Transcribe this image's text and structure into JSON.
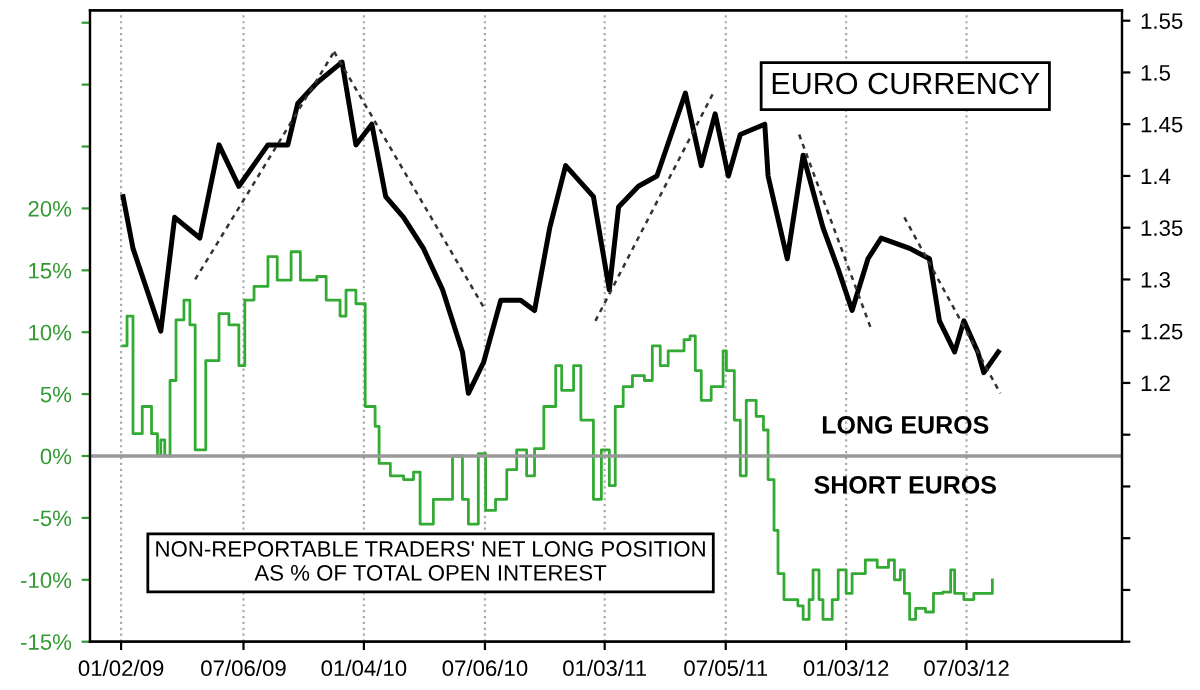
{
  "chart_data": {
    "type": "line",
    "annotations": [
      "EURO CURRENCY",
      "LONG EUROS",
      "SHORT EUROS",
      "NON-REPORTABLE TRADERS' NET LONG POSITION\nAS % OF TOTAL OPEN INTEREST"
    ],
    "series": [
      {
        "type": "step",
        "color": "#33aa33",
        "x": [
          "2009-01-05",
          "2009-01-11",
          "2009-01-20",
          "2009-02-03",
          "2009-02-17",
          "2009-02-26",
          "2009-03-03",
          "2009-03-09",
          "2009-03-17",
          "2009-03-26",
          "2009-04-07",
          "2009-04-16",
          "2009-04-24",
          "2009-05-10",
          "2009-05-30",
          "2009-06-14",
          "2009-06-29",
          "2009-07-08",
          "2009-07-22",
          "2009-08-12",
          "2009-08-26",
          "2009-09-16",
          "2009-09-30",
          "2009-10-25",
          "2009-11-08",
          "2009-11-29",
          "2009-12-08",
          "2009-12-23",
          "2010-01-06",
          "2010-01-21",
          "2010-01-27",
          "2010-02-13",
          "2010-03-05",
          "2010-03-20",
          "2010-03-30",
          "2010-04-19",
          "2010-05-18",
          "2010-06-02",
          "2010-06-11",
          "2010-06-26",
          "2010-07-07",
          "2010-07-22",
          "2010-08-08",
          "2010-08-23",
          "2010-09-07",
          "2010-09-19",
          "2010-10-03",
          "2010-10-21",
          "2010-10-30",
          "2010-11-17",
          "2010-11-28",
          "2010-12-17",
          "2010-12-29",
          "2011-01-10",
          "2011-01-19",
          "2011-01-31",
          "2011-02-14",
          "2011-03-04",
          "2011-03-16",
          "2011-03-28",
          "2011-04-09",
          "2011-05-03",
          "2011-05-12",
          "2011-05-20",
          "2011-05-29",
          "2011-06-13",
          "2011-07-01",
          "2011-07-06",
          "2011-07-18",
          "2011-07-27",
          "2011-08-05",
          "2011-08-20",
          "2011-08-31",
          "2011-09-07",
          "2011-09-16",
          "2011-09-22",
          "2011-10-01",
          "2011-10-22",
          "2011-10-30",
          "2011-11-08",
          "2011-11-14",
          "2011-11-23",
          "2011-11-29",
          "2011-12-13",
          "2011-12-22",
          "2012-01-03",
          "2012-01-12",
          "2012-02-01",
          "2012-02-19",
          "2012-03-07",
          "2012-03-16",
          "2012-03-25",
          "2012-03-31",
          "2012-04-08",
          "2012-04-17",
          "2012-05-02",
          "2012-05-14",
          "2012-05-28",
          "2012-06-09",
          "2012-06-15",
          "2012-06-29",
          "2012-07-14",
          "2012-08-03",
          "2012-08-11"
        ],
        "values": [
          8.9,
          11.3,
          1.8,
          4.0,
          1.8,
          0,
          1.3,
          0,
          6.1,
          11.0,
          12.6,
          10.6,
          0.5,
          7.7,
          11.5,
          10.6,
          7.3,
          12.6,
          13.7,
          16.1,
          14.2,
          16.5,
          14.2,
          14.5,
          12.6,
          11.3,
          13.4,
          12.3,
          4.0,
          2.4,
          -0.6,
          -1.6,
          -1.9,
          -1.3,
          -5.5,
          -3.5,
          0,
          -3.5,
          -5.5,
          0.2,
          -4.4,
          -3.5,
          -1.1,
          0.5,
          -1.6,
          0.6,
          4.0,
          7.3,
          5.3,
          7.3,
          2.9,
          -3.5,
          0.5,
          -2.4,
          4.0,
          5.6,
          6.5,
          6.1,
          8.9,
          7.3,
          8.5,
          9.4,
          9.7,
          6.9,
          4.5,
          5.6,
          8.5,
          6.9,
          2.9,
          -1.6,
          4.5,
          3.2,
          2.1,
          -1.9,
          -6.0,
          -9.5,
          -11.6,
          -12.1,
          -13.2,
          -11.6,
          -9.2,
          -11.6,
          -13.2,
          -11.6,
          -9.2,
          -11.1,
          -9.5,
          -8.4,
          -9.0,
          -8.4,
          -10.0,
          -9.2,
          -11.1,
          -13.2,
          -12.3,
          -12.6,
          -11.1,
          -11.0,
          -9.2,
          -11.1,
          -11.6,
          -11.1,
          -11.1,
          -10.0
        ]
      },
      {
        "axis": "y2",
        "color": "#000000",
        "x": [
          "2009-01-05",
          "2009-01-20",
          "2009-02-10",
          "2009-03-03",
          "2009-03-24",
          "2009-05-01",
          "2009-05-30",
          "2009-06-29",
          "2009-08-12",
          "2009-09-11",
          "2009-09-26",
          "2009-10-25",
          "2009-12-02",
          "2009-12-23",
          "2010-01-16",
          "2010-02-06",
          "2010-03-05",
          "2010-04-04",
          "2010-05-03",
          "2010-06-02",
          "2010-06-11",
          "2010-07-04",
          "2010-07-30",
          "2010-08-29",
          "2010-09-19",
          "2010-10-12",
          "2010-11-05",
          "2010-12-17",
          "2011-01-10",
          "2011-01-24",
          "2011-02-23",
          "2011-03-23",
          "2011-05-05",
          "2011-05-29",
          "2011-06-19",
          "2011-07-09",
          "2011-07-27",
          "2011-09-02",
          "2011-09-07",
          "2011-10-06",
          "2011-10-30",
          "2011-11-29",
          "2011-12-22",
          "2012-01-12",
          "2012-02-05",
          "2012-02-25",
          "2012-04-08",
          "2012-05-08",
          "2012-05-23",
          "2012-06-15",
          "2012-06-29",
          "2012-07-20",
          "2012-07-29",
          "2012-08-20"
        ],
        "values": [
          1.38,
          1.33,
          1.29,
          1.25,
          1.36,
          1.34,
          1.43,
          1.39,
          1.43,
          1.43,
          1.47,
          1.49,
          1.51,
          1.43,
          1.45,
          1.38,
          1.36,
          1.33,
          1.29,
          1.23,
          1.19,
          1.22,
          1.28,
          1.28,
          1.27,
          1.35,
          1.41,
          1.38,
          1.29,
          1.37,
          1.39,
          1.4,
          1.48,
          1.41,
          1.46,
          1.4,
          1.44,
          1.45,
          1.4,
          1.32,
          1.42,
          1.35,
          1.31,
          1.27,
          1.32,
          1.34,
          1.33,
          1.32,
          1.26,
          1.23,
          1.26,
          1.23,
          1.21,
          1.23
        ]
      },
      {
        "type": "line",
        "axis": "y2",
        "color": "#333333",
        "line_style": "dashed",
        "x": [
          "2009-04-24",
          "2009-11-20"
        ],
        "values": [
          1.3,
          1.52
        ]
      },
      {
        "type": "line",
        "axis": "y2",
        "color": "#333333",
        "line_style": "dashed",
        "x": [
          "2009-11-20",
          "2010-07-07"
        ],
        "values": [
          1.52,
          1.27
        ]
      },
      {
        "type": "line",
        "axis": "y2",
        "color": "#333333",
        "line_style": "dashed",
        "x": [
          "2010-12-20",
          "2011-06-16"
        ],
        "values": [
          1.26,
          1.48
        ]
      },
      {
        "type": "line",
        "axis": "y2",
        "color": "#333333",
        "line_style": "dashed",
        "x": [
          "2011-10-24",
          "2012-02-11"
        ],
        "values": [
          1.44,
          1.25
        ]
      },
      {
        "type": "line",
        "axis": "y2",
        "color": "#333333",
        "line_style": "dashed",
        "x": [
          "2012-03-31",
          "2012-08-23"
        ],
        "values": [
          1.36,
          1.19
        ]
      }
    ],
    "xlim": [
      "2008-11-16",
      "2013-02-23"
    ],
    "xticks": [
      {
        "value": "2009-01-02",
        "label": "01/02/09"
      },
      {
        "value": "2009-07-06",
        "label": "07/06/09"
      },
      {
        "value": "2010-01-04",
        "label": "01/04/10"
      },
      {
        "value": "2010-07-06",
        "label": "07/06/10"
      },
      {
        "value": "2011-01-03",
        "label": "01/03/11"
      },
      {
        "value": "2011-07-05",
        "label": "07/05/11"
      },
      {
        "value": "2012-01-03",
        "label": "01/03/12"
      },
      {
        "value": "2012-07-03",
        "label": "07/03/12"
      }
    ],
    "ylim": [
      -15,
      36
    ],
    "yticks": [
      {
        "value": -15,
        "label": "-15%"
      },
      {
        "value": -10,
        "label": "-10%"
      },
      {
        "value": -5,
        "label": "-5%"
      },
      {
        "value": 0,
        "label": "0%"
      },
      {
        "value": 5,
        "label": "5%"
      },
      {
        "value": 10,
        "label": "10%"
      },
      {
        "value": 15,
        "label": "15%"
      },
      {
        "value": 20,
        "label": "20%"
      },
      {
        "value": 25,
        "label": null
      },
      {
        "value": 30,
        "label": null
      },
      {
        "value": 35,
        "label": null
      }
    ],
    "y2lim": [
      0.95,
      1.56
    ],
    "y2ticks": [
      {
        "value": 0.95,
        "label": null
      },
      {
        "value": 1.0,
        "label": null
      },
      {
        "value": 1.05,
        "label": null
      },
      {
        "value": 1.1,
        "label": null
      },
      {
        "value": 1.15,
        "label": null
      },
      1.2,
      1.25,
      1.3,
      1.35,
      1.4,
      1.45,
      1.5,
      1.55
    ],
    "ref_lines": [
      {
        "axis": "y",
        "value": 0,
        "color": "#999999"
      }
    ],
    "grid": "x",
    "legend": false
  }
}
